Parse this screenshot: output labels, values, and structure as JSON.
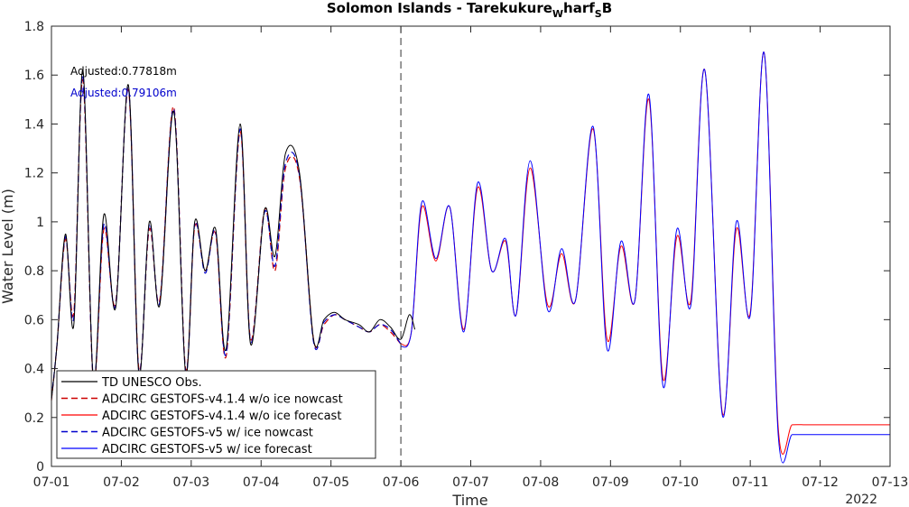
{
  "chart_data": {
    "type": "line",
    "title_parts": [
      "Solomon Islands - Tarekukure",
      "W",
      "harf",
      "S",
      "B"
    ],
    "xlabel": "Time",
    "ylabel": "Water Level (m)",
    "year_label": "2022",
    "xlim": [
      0,
      12
    ],
    "ylim": [
      0,
      1.8
    ],
    "x_ticks": [
      "07-01",
      "07-02",
      "07-03",
      "07-04",
      "07-05",
      "07-06",
      "07-07",
      "07-08",
      "07-09",
      "07-10",
      "07-11",
      "07-12",
      "07-13"
    ],
    "y_ticks": [
      "0",
      "0.2",
      "0.4",
      "0.6",
      "0.8",
      "1",
      "1.2",
      "1.4",
      "1.6",
      "1.8"
    ],
    "nowcast_boundary_x": 5,
    "annotations": [
      {
        "text": "Adjusted:0.77818m",
        "color": "#000000"
      },
      {
        "text": "Adjusted:0.79106m",
        "color": "#0000cc"
      }
    ],
    "legend_position": "bottom-left",
    "series": [
      {
        "name": "TD UNESCO Obs.",
        "color": "#000000",
        "style": "solid",
        "width": 1,
        "x": [
          0,
          0.08,
          0.2,
          0.32,
          0.45,
          0.6,
          0.75,
          0.92,
          1.1,
          1.25,
          1.4,
          1.55,
          1.75,
          1.92,
          2.05,
          2.2,
          2.35,
          2.5,
          2.7,
          2.85,
          3.05,
          3.2,
          3.35,
          3.55,
          3.75,
          3.9,
          4.05,
          4.2,
          4.4,
          4.55,
          4.7,
          4.85,
          5.0,
          5.12,
          5.2
        ],
        "y": [
          0.27,
          0.5,
          0.95,
          0.58,
          1.62,
          0.35,
          1.03,
          0.65,
          1.56,
          0.38,
          1.0,
          0.66,
          1.45,
          0.38,
          1.0,
          0.8,
          0.97,
          0.48,
          1.4,
          0.5,
          1.05,
          0.86,
          1.28,
          1.2,
          0.52,
          0.6,
          0.63,
          0.6,
          0.58,
          0.55,
          0.6,
          0.57,
          0.52,
          0.62,
          0.56
        ]
      },
      {
        "name": "ADCIRC GESTOFS-v4.1.4 w/o ice nowcast",
        "color": "#cc0000",
        "style": "dashed",
        "width": 1.2,
        "x": [
          0,
          0.08,
          0.2,
          0.32,
          0.45,
          0.6,
          0.75,
          0.92,
          1.1,
          1.25,
          1.4,
          1.55,
          1.75,
          1.92,
          2.05,
          2.2,
          2.35,
          2.5,
          2.7,
          2.85,
          3.05,
          3.2,
          3.35,
          3.55,
          3.75,
          3.9,
          4.05,
          4.2,
          4.4,
          4.55,
          4.7,
          4.85,
          5.0
        ],
        "y": [
          0.27,
          0.5,
          0.93,
          0.63,
          1.58,
          0.35,
          0.97,
          0.67,
          1.54,
          0.4,
          0.97,
          0.68,
          1.47,
          0.4,
          0.98,
          0.8,
          0.95,
          0.45,
          1.37,
          0.52,
          1.05,
          0.8,
          1.22,
          1.18,
          0.52,
          0.58,
          0.62,
          0.6,
          0.57,
          0.55,
          0.58,
          0.55,
          0.5
        ]
      },
      {
        "name": "ADCIRC GESTOFS-v4.1.4 w/o ice forecast",
        "color": "#ff0000",
        "style": "solid",
        "width": 1,
        "x": [
          5,
          5.15,
          5.3,
          5.5,
          5.7,
          5.9,
          6.1,
          6.3,
          6.5,
          6.65,
          6.85,
          7.1,
          7.3,
          7.5,
          7.75,
          7.95,
          8.15,
          8.35,
          8.55,
          8.75,
          8.95,
          9.15,
          9.35,
          9.6,
          9.8,
          10.0,
          10.2,
          10.4,
          10.6,
          10.8,
          11.0,
          11.2,
          11.4,
          11.6,
          11.8,
          12.0
        ],
        "y": [
          0.5,
          0.55,
          1.06,
          0.84,
          1.06,
          0.56,
          1.14,
          0.8,
          0.92,
          0.62,
          1.22,
          0.66,
          0.87,
          0.68,
          1.38,
          0.52,
          0.9,
          0.68,
          1.5,
          0.36,
          0.94,
          0.68,
          1.62,
          0.22,
          0.97,
          0.63,
          1.69,
          0.16,
          0.17,
          0.17,
          0.17,
          0.17,
          0.17,
          0.17,
          0.17,
          0.17
        ]
      },
      {
        "name": "ADCIRC GESTOFS-v5 w/ ice nowcast",
        "color": "#0000cc",
        "style": "dashed",
        "width": 1.2,
        "x": [
          0,
          0.08,
          0.2,
          0.32,
          0.45,
          0.6,
          0.75,
          0.92,
          1.1,
          1.25,
          1.4,
          1.55,
          1.75,
          1.92,
          2.05,
          2.2,
          2.35,
          2.5,
          2.7,
          2.85,
          3.05,
          3.2,
          3.35,
          3.55,
          3.75,
          3.9,
          4.05,
          4.2,
          4.4,
          4.55,
          4.7,
          4.85,
          5.0
        ],
        "y": [
          0.28,
          0.5,
          0.94,
          0.61,
          1.6,
          0.36,
          0.99,
          0.66,
          1.55,
          0.39,
          0.99,
          0.67,
          1.46,
          0.39,
          0.99,
          0.79,
          0.96,
          0.46,
          1.38,
          0.51,
          1.04,
          0.82,
          1.24,
          1.19,
          0.51,
          0.59,
          0.62,
          0.6,
          0.57,
          0.55,
          0.58,
          0.56,
          0.5
        ]
      },
      {
        "name": "ADCIRC GESTOFS-v5 w/ ice forecast",
        "color": "#0000ff",
        "style": "solid",
        "width": 1,
        "x": [
          5,
          5.15,
          5.3,
          5.5,
          5.7,
          5.9,
          6.1,
          6.3,
          6.5,
          6.65,
          6.85,
          7.1,
          7.3,
          7.5,
          7.75,
          7.95,
          8.15,
          8.35,
          8.55,
          8.75,
          8.95,
          9.15,
          9.35,
          9.6,
          9.8,
          10.0,
          10.2,
          10.4,
          10.6,
          10.8,
          11.0,
          11.2,
          11.4,
          11.6,
          11.8,
          12.0
        ],
        "y": [
          0.49,
          0.55,
          1.08,
          0.85,
          1.06,
          0.55,
          1.16,
          0.8,
          0.93,
          0.62,
          1.25,
          0.64,
          0.89,
          0.68,
          1.39,
          0.48,
          0.92,
          0.68,
          1.52,
          0.33,
          0.97,
          0.66,
          1.62,
          0.21,
          1.0,
          0.62,
          1.69,
          0.13,
          0.13,
          0.13,
          0.13,
          0.13,
          0.13,
          0.13,
          0.13,
          0.13
        ]
      }
    ]
  }
}
